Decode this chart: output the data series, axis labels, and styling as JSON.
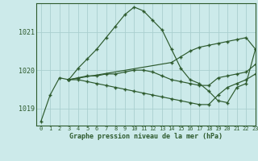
{
  "title": "Graphe pression niveau de la mer (hPa)",
  "background_color": "#cceaea",
  "line_color": "#2d5a2d",
  "grid_color": "#aacfcf",
  "xlim": [
    -0.5,
    23
  ],
  "ylim": [
    1018.55,
    1021.75
  ],
  "yticks": [
    1019,
    1020,
    1021
  ],
  "xticks": [
    0,
    1,
    2,
    3,
    4,
    5,
    6,
    7,
    8,
    9,
    10,
    11,
    12,
    13,
    14,
    15,
    16,
    17,
    18,
    19,
    20,
    21,
    22,
    23
  ],
  "series": [
    {
      "x": [
        0,
        1,
        2,
        3,
        4,
        5,
        6,
        7,
        8,
        9,
        10,
        11,
        12,
        13,
        14,
        15,
        16,
        17,
        18,
        19,
        20,
        21,
        22,
        23
      ],
      "y": [
        1018.65,
        1019.35,
        1019.8,
        1019.75,
        1020.05,
        1020.3,
        1020.55,
        1020.85,
        1021.15,
        1021.45,
        1021.65,
        1021.55,
        1021.3,
        1021.05,
        1020.55,
        1020.05,
        1019.75,
        1019.65,
        1019.45,
        1019.2,
        1019.15,
        1019.55,
        1019.65,
        1020.55
      ]
    },
    {
      "x": [
        3,
        14,
        15,
        16,
        17,
        18,
        19,
        20,
        21,
        22,
        23
      ],
      "y": [
        1019.75,
        1020.2,
        1020.35,
        1020.5,
        1020.6,
        1020.65,
        1020.7,
        1020.75,
        1020.8,
        1020.85,
        1020.55
      ]
    },
    {
      "x": [
        3,
        4,
        5,
        6,
        7,
        8,
        9,
        10,
        11,
        12,
        13,
        14,
        15,
        16,
        17,
        18,
        19,
        20,
        21,
        22,
        23
      ],
      "y": [
        1019.75,
        1019.75,
        1019.7,
        1019.65,
        1019.6,
        1019.55,
        1019.5,
        1019.45,
        1019.4,
        1019.35,
        1019.3,
        1019.25,
        1019.2,
        1019.15,
        1019.1,
        1019.1,
        1019.35,
        1019.55,
        1019.65,
        1019.75,
        1019.9
      ]
    },
    {
      "x": [
        3,
        4,
        5,
        6,
        7,
        8,
        9,
        10,
        11,
        12,
        13,
        14,
        15,
        16,
        17,
        18,
        19,
        20,
        21,
        22,
        23
      ],
      "y": [
        1019.75,
        1019.8,
        1019.85,
        1019.85,
        1019.9,
        1019.9,
        1019.95,
        1020.0,
        1020.0,
        1019.95,
        1019.85,
        1019.75,
        1019.7,
        1019.65,
        1019.6,
        1019.6,
        1019.8,
        1019.85,
        1019.9,
        1019.95,
        1020.15
      ]
    }
  ]
}
